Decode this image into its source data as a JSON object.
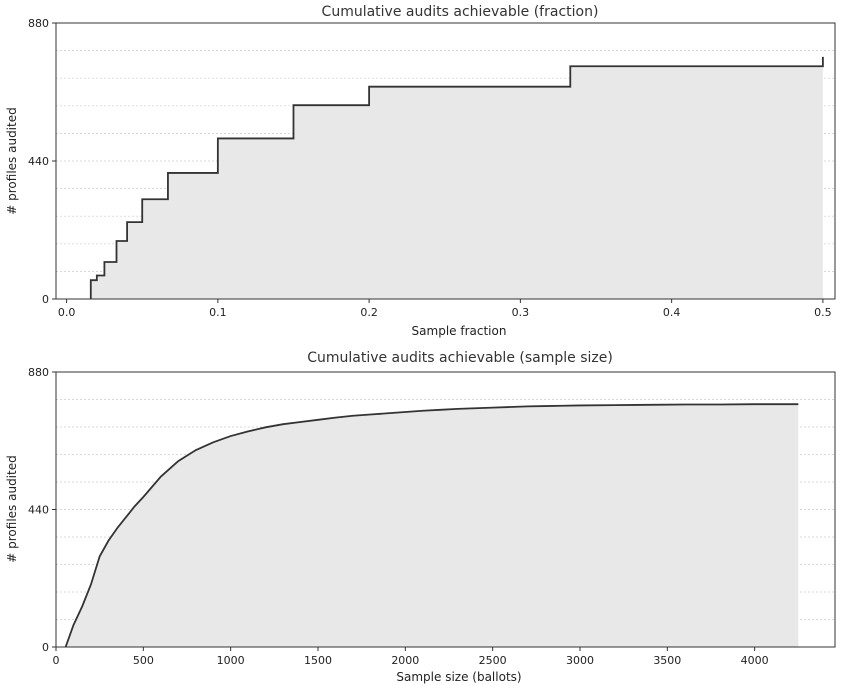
{
  "chart_data": [
    {
      "type": "line",
      "step": true,
      "title": "Cumulative audits achievable (fraction)",
      "xlabel": "Sample fraction",
      "ylabel": "# profiles audited",
      "xlim": [
        -0.007,
        0.508
      ],
      "ylim": [
        0,
        880
      ],
      "xticks": [
        0,
        0.1,
        0.2,
        0.3,
        0.4,
        0.5
      ],
      "xtick_labels": [
        "0.0",
        "0.1",
        "0.2",
        "0.3",
        "0.4",
        "0.5"
      ],
      "yticks": [
        0,
        440,
        880
      ],
      "ytick_labels": [
        "0",
        "440",
        "880"
      ],
      "grid": "horizontal dashed",
      "fill_color": "#e8e8e8",
      "line_color": "#333333",
      "x": [
        0.016,
        0.02,
        0.025,
        0.033,
        0.04,
        0.05,
        0.067,
        0.1,
        0.15,
        0.2,
        0.333,
        0.5
      ],
      "y": [
        60,
        75,
        118,
        185,
        245,
        318,
        402,
        512,
        618,
        677,
        742,
        772
      ]
    },
    {
      "type": "line",
      "title": "Cumulative audits achievable (sample size)",
      "xlabel": "Sample size (ballots)",
      "ylabel": "# profiles audited",
      "xlim": [
        0,
        4460
      ],
      "ylim": [
        0,
        880
      ],
      "xticks": [
        0,
        500,
        1000,
        1500,
        2000,
        2500,
        3000,
        3500,
        4000
      ],
      "xtick_labels": [
        "0",
        "500",
        "1000",
        "1500",
        "2000",
        "2500",
        "3000",
        "3500",
        "4000"
      ],
      "yticks": [
        0,
        440,
        880
      ],
      "ytick_labels": [
        "0",
        "440",
        "880"
      ],
      "grid": "horizontal dashed",
      "fill_color": "#e8e8e8",
      "line_color": "#333333",
      "x": [
        55,
        100,
        150,
        200,
        250,
        300,
        350,
        400,
        450,
        500,
        600,
        700,
        800,
        900,
        1000,
        1100,
        1200,
        1300,
        1400,
        1500,
        1600,
        1700,
        1800,
        1900,
        2000,
        2100,
        2200,
        2300,
        2400,
        2500,
        2600,
        2700,
        2800,
        2900,
        3000,
        3200,
        3400,
        3600,
        3800,
        4000,
        4250
      ],
      "y": [
        0,
        70,
        130,
        200,
        290,
        340,
        380,
        415,
        450,
        480,
        545,
        595,
        630,
        655,
        675,
        690,
        703,
        713,
        720,
        727,
        734,
        740,
        744,
        748,
        752,
        756,
        759,
        762,
        764,
        766,
        768,
        770,
        771,
        772,
        773,
        774,
        775,
        776,
        776,
        777,
        777
      ]
    }
  ]
}
